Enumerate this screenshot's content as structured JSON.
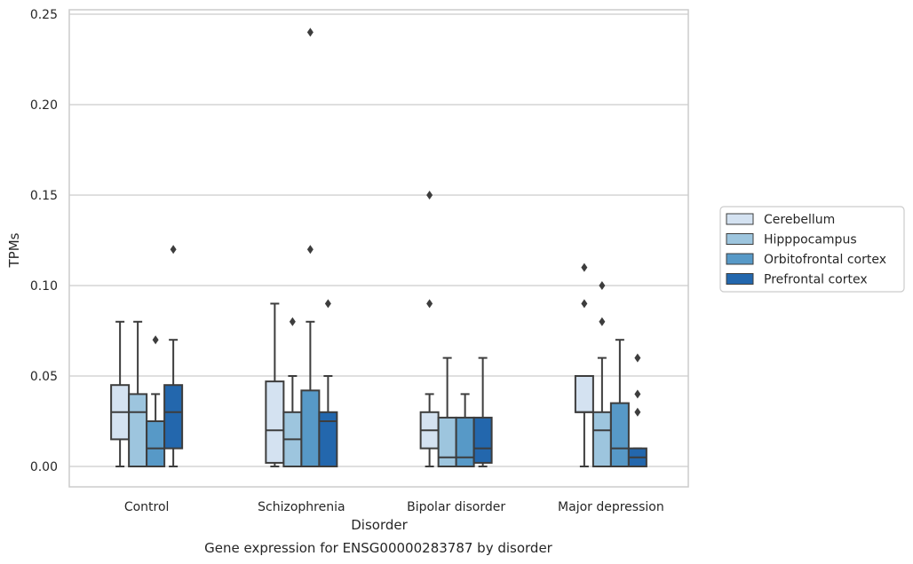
{
  "chart_data": {
    "type": "box",
    "caption": "Gene expression for ENSG00000283787 by disorder",
    "xlabel": "Disorder",
    "ylabel": "TPMs",
    "ylim": [
      -0.011,
      0.252
    ],
    "yticks": [
      0.0,
      0.05,
      0.1,
      0.15,
      0.2,
      0.25
    ],
    "ytick_labels": [
      "0.00",
      "0.05",
      "0.10",
      "0.15",
      "0.20",
      "0.25"
    ],
    "grid": true,
    "legend_position": "right",
    "categories": [
      "Control",
      "Schizophrenia",
      "Bipolar disorder",
      "Major depression"
    ],
    "series": [
      {
        "name": "Cerebellum",
        "color": "#d4e2f1",
        "boxes": [
          {
            "q1": 0.015,
            "median": 0.03,
            "q3": 0.045,
            "whislo": 0.0,
            "whishi": 0.08,
            "fliers": []
          },
          {
            "q1": 0.002,
            "median": 0.02,
            "q3": 0.047,
            "whislo": 0.0,
            "whishi": 0.09,
            "fliers": []
          },
          {
            "q1": 0.01,
            "median": 0.02,
            "q3": 0.03,
            "whislo": 0.0,
            "whishi": 0.04,
            "fliers": [
              0.09,
              0.15
            ]
          },
          {
            "q1": 0.03,
            "median": 0.03,
            "q3": 0.05,
            "whislo": 0.0,
            "whishi": 0.05,
            "fliers": [
              0.09,
              0.11
            ]
          }
        ]
      },
      {
        "name": "Hipppocampus",
        "color": "#9dc5de",
        "boxes": [
          {
            "q1": 0.0,
            "median": 0.03,
            "q3": 0.04,
            "whislo": 0.0,
            "whishi": 0.08,
            "fliers": []
          },
          {
            "q1": 0.0,
            "median": 0.015,
            "q3": 0.03,
            "whislo": 0.0,
            "whishi": 0.05,
            "fliers": [
              0.08
            ]
          },
          {
            "q1": 0.0,
            "median": 0.005,
            "q3": 0.027,
            "whislo": 0.0,
            "whishi": 0.06,
            "fliers": []
          },
          {
            "q1": 0.0,
            "median": 0.02,
            "q3": 0.03,
            "whislo": 0.0,
            "whishi": 0.06,
            "fliers": [
              0.08,
              0.1
            ]
          }
        ]
      },
      {
        "name": "Orbitofrontal cortex",
        "color": "#5799c7",
        "boxes": [
          {
            "q1": 0.0,
            "median": 0.01,
            "q3": 0.025,
            "whislo": 0.0,
            "whishi": 0.04,
            "fliers": [
              0.07
            ]
          },
          {
            "q1": 0.0,
            "median": 0.0,
            "q3": 0.042,
            "whislo": 0.0,
            "whishi": 0.08,
            "fliers": [
              0.12,
              0.24
            ]
          },
          {
            "q1": 0.0,
            "median": 0.005,
            "q3": 0.027,
            "whislo": 0.0,
            "whishi": 0.04,
            "fliers": []
          },
          {
            "q1": 0.0,
            "median": 0.01,
            "q3": 0.035,
            "whislo": 0.0,
            "whishi": 0.07,
            "fliers": []
          }
        ]
      },
      {
        "name": "Prefrontal cortex",
        "color": "#2367ad",
        "boxes": [
          {
            "q1": 0.01,
            "median": 0.03,
            "q3": 0.045,
            "whislo": 0.0,
            "whishi": 0.07,
            "fliers": [
              0.12
            ]
          },
          {
            "q1": 0.0,
            "median": 0.025,
            "q3": 0.03,
            "whislo": 0.0,
            "whishi": 0.05,
            "fliers": [
              0.09
            ]
          },
          {
            "q1": 0.002,
            "median": 0.01,
            "q3": 0.027,
            "whislo": 0.0,
            "whishi": 0.06,
            "fliers": []
          },
          {
            "q1": 0.0,
            "median": 0.005,
            "q3": 0.01,
            "whislo": 0.0,
            "whishi": 0.01,
            "fliers": [
              0.03,
              0.04,
              0.06
            ]
          }
        ]
      }
    ]
  }
}
